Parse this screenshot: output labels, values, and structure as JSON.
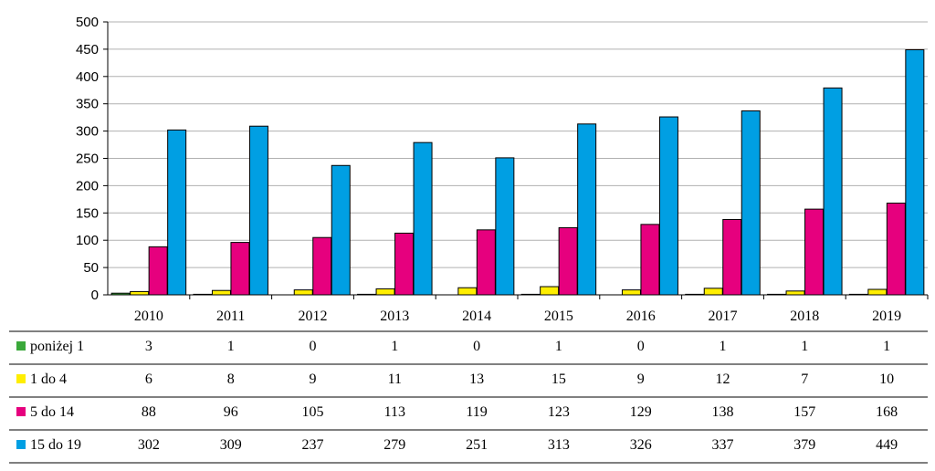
{
  "chart_data": {
    "type": "bar",
    "categories": [
      "2010",
      "2011",
      "2012",
      "2013",
      "2014",
      "2015",
      "2016",
      "2017",
      "2018",
      "2019"
    ],
    "series": [
      {
        "name": "poniżej 1",
        "color": "#3aa83a",
        "values": [
          3,
          1,
          0,
          1,
          0,
          1,
          0,
          1,
          1,
          1
        ]
      },
      {
        "name": "1 do 4",
        "color": "#ffee00",
        "values": [
          6,
          8,
          9,
          11,
          13,
          15,
          9,
          12,
          7,
          10
        ]
      },
      {
        "name": "5 do 14",
        "color": "#e6007e",
        "values": [
          88,
          96,
          105,
          113,
          119,
          123,
          129,
          138,
          157,
          168
        ]
      },
      {
        "name": "15 do 19",
        "color": "#009fe3",
        "values": [
          302,
          309,
          237,
          279,
          251,
          313,
          326,
          337,
          379,
          449
        ]
      }
    ],
    "y_ticks": [
      "0",
      "50",
      "100",
      "150",
      "200",
      "250",
      "300",
      "350",
      "400",
      "450",
      "500"
    ],
    "ylim": [
      0,
      500
    ],
    "grid": true,
    "legend": "data-table"
  }
}
